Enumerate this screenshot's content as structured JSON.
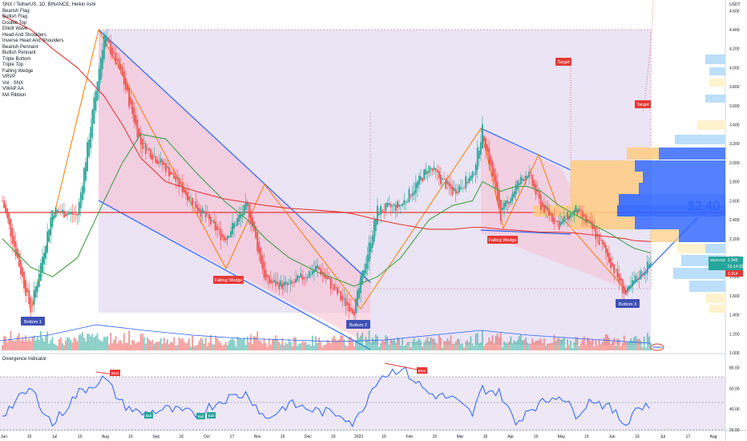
{
  "header": {
    "symbol": "SNX / TetherUS, 1D, BINANCE, Heikin Ashi",
    "indicators": [
      "Bearish Flag",
      "Bullish Flag",
      "Double Top",
      "Elliott Wave",
      "Head And Shoulders",
      "Inverse Head And Shoulders",
      "Bearish Pennant",
      "Bullish Pennant",
      "Triple Bottom",
      "Triple Top",
      "Falling Wedge",
      "VRVP",
      "Vol · SNX",
      "VWAP AA",
      "MA Ribbon"
    ]
  },
  "price_axis": {
    "unit": "USDT",
    "labels": [
      "4.600",
      "4.400",
      "4.200",
      "4.000",
      "3.800",
      "3.600",
      "3.400",
      "3.200",
      "3.000",
      "2.800",
      "2.600",
      "2.400",
      "2.200",
      "2.000",
      "1.800",
      "1.600",
      "1.400",
      "1.200",
      "1.000"
    ],
    "current_tag": {
      "symbol": "SNXUSDT",
      "price": "1.945",
      "timer": "01:14:33"
    },
    "red_tag": "1.914"
  },
  "time_axis": {
    "labels": [
      "Jun",
      "16",
      "Jul",
      "16",
      "Aug",
      "16",
      "Sep",
      "16",
      "Oct",
      "17",
      "Nov",
      "16",
      "Dec",
      "16",
      "2023",
      "16",
      "Feb",
      "16",
      "Mar",
      "16",
      "Apr",
      "16",
      "May",
      "16",
      "Jun",
      "16",
      "Jul",
      "17",
      "Aug"
    ]
  },
  "oscillator": {
    "title": "Divergence Indicator",
    "axis_labels": [
      "80.00",
      "60.00",
      "40.00",
      "20.00"
    ]
  },
  "annotations": {
    "bottoms": [
      "Bottom 1",
      "Bottom 2",
      "Bottom 3"
    ],
    "falling_wedge": "Falling Wedge",
    "target": "Target",
    "projection": "$2.40",
    "bear": "Bear",
    "bull": "Bull"
  },
  "colors": {
    "up": "#26a69a",
    "down": "#ef5350",
    "ma_red": "#e53935",
    "ma_green": "#43a047",
    "wedge": "#2962ff",
    "zigzag": "#f57c00",
    "purple_zone": "#d1c4e9",
    "red_zone": "#f8bbd0",
    "vol_line": "#2962ff",
    "osc_line": "#2962ff",
    "label_blue": "#3f51b5",
    "label_red": "#e53935"
  },
  "chart_data": {
    "type": "candlestick",
    "title": "SNX / TetherUS, 1D, BINANCE, Heikin Ashi",
    "ylim": [
      1.0,
      4.6
    ],
    "x": [
      "2022-06-01",
      "2022-06-18",
      "2022-07-01",
      "2022-07-16",
      "2022-08-01",
      "2022-08-12",
      "2022-08-23",
      "2022-09-07",
      "2022-09-25",
      "2022-10-12",
      "2022-10-26",
      "2022-11-06",
      "2022-11-20",
      "2022-12-07",
      "2022-12-22",
      "2022-12-29",
      "2023-01-12",
      "2023-01-26",
      "2023-02-12",
      "2023-02-26",
      "2023-03-10",
      "2023-03-16",
      "2023-03-27",
      "2023-04-05",
      "2023-04-12",
      "2023-04-20",
      "2023-05-01",
      "2023-05-11",
      "2023-05-21",
      "2023-06-01",
      "2023-06-10",
      "2023-06-15",
      "2023-06-25"
    ],
    "close": [
      2.6,
      1.45,
      2.5,
      2.45,
      4.35,
      3.9,
      3.2,
      2.95,
      2.55,
      2.2,
      2.55,
      1.75,
      1.7,
      1.9,
      1.55,
      1.45,
      2.5,
      2.55,
      2.95,
      2.7,
      2.85,
      3.35,
      2.45,
      2.75,
      2.9,
      2.55,
      2.35,
      2.5,
      2.3,
      1.95,
      1.6,
      1.75,
      1.95
    ],
    "ma_long": [
      4.55,
      4.4,
      4.2,
      4.0,
      3.7,
      3.4,
      3.05,
      2.8,
      2.7,
      2.62,
      2.58,
      2.55,
      2.52,
      2.5,
      2.48,
      2.46,
      2.4,
      2.35,
      2.3,
      2.3,
      2.32,
      2.32,
      2.3,
      2.29,
      2.28,
      2.27,
      2.27,
      2.26,
      2.24,
      2.22,
      2.2,
      2.18,
      2.17
    ],
    "ma_short": [
      2.2,
      1.9,
      1.8,
      2.0,
      2.6,
      3.0,
      3.3,
      3.25,
      2.9,
      2.6,
      2.4,
      2.2,
      2.0,
      1.85,
      1.75,
      1.7,
      1.8,
      2.0,
      2.4,
      2.55,
      2.6,
      2.8,
      2.7,
      2.75,
      2.75,
      2.7,
      2.55,
      2.45,
      2.35,
      2.25,
      2.15,
      2.1,
      2.05
    ],
    "horizontal_level": 2.45,
    "oscillator": {
      "name": "Divergence Indicator",
      "ylim": [
        20,
        85
      ],
      "values": [
        35,
        60,
        25,
        55,
        70,
        45,
        35,
        40,
        35,
        50,
        55,
        30,
        45,
        38,
        35,
        25,
        70,
        80,
        55,
        50,
        35,
        60,
        55,
        25,
        40,
        45,
        55,
        35,
        50,
        40,
        25,
        40,
        45
      ]
    }
  }
}
